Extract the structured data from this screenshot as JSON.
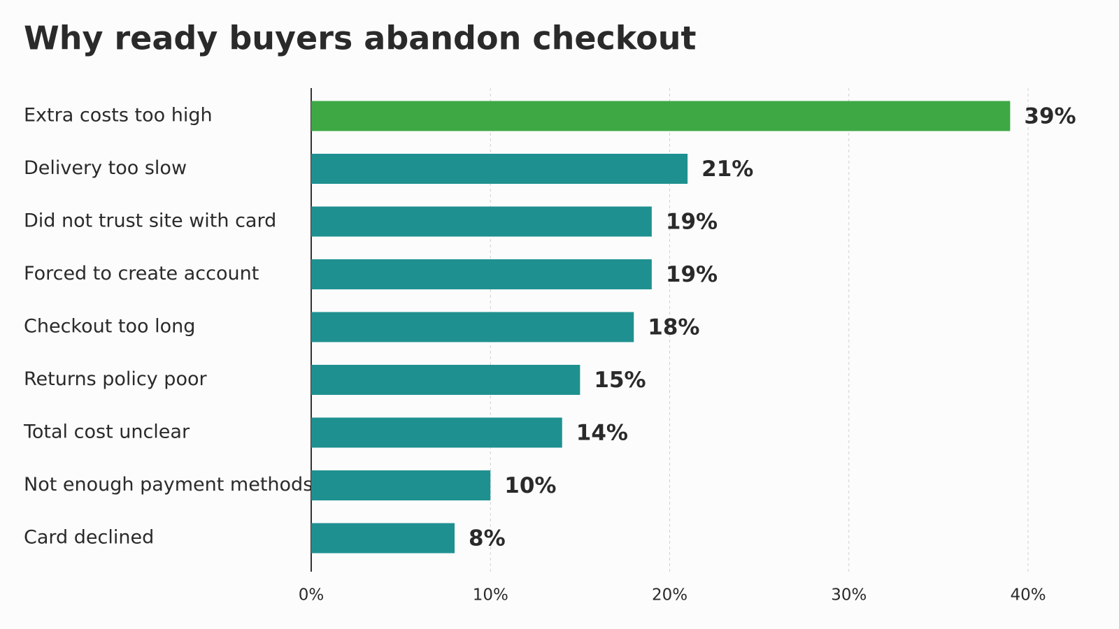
{
  "chart_data": {
    "type": "hbar",
    "title": "Why ready buyers abandon checkout",
    "categories": [
      "Extra costs too high",
      "Delivery too slow",
      "Did not trust site with card",
      "Forced to create account",
      "Checkout too long",
      "Returns policy poor",
      "Total cost unclear",
      "Not enough payment methods",
      "Card declined"
    ],
    "values": [
      39,
      21,
      19,
      19,
      18,
      15,
      14,
      10,
      8
    ],
    "value_labels": [
      "39%",
      "21%",
      "19%",
      "19%",
      "18%",
      "15%",
      "14%",
      "10%",
      "8%"
    ],
    "colors": [
      "#3ea845",
      "#1f9090",
      "#1f9090",
      "#1f9090",
      "#1f9090",
      "#1f9090",
      "#1f9090",
      "#1f9090",
      "#1f9090"
    ],
    "xlim": [
      0,
      40
    ],
    "xticks": [
      {
        "value": 0,
        "label": "0%"
      },
      {
        "value": 10,
        "label": "10%"
      },
      {
        "value": 20,
        "label": "20%"
      },
      {
        "value": 30,
        "label": "30%"
      },
      {
        "value": 40,
        "label": "40%"
      }
    ],
    "grid": true
  }
}
